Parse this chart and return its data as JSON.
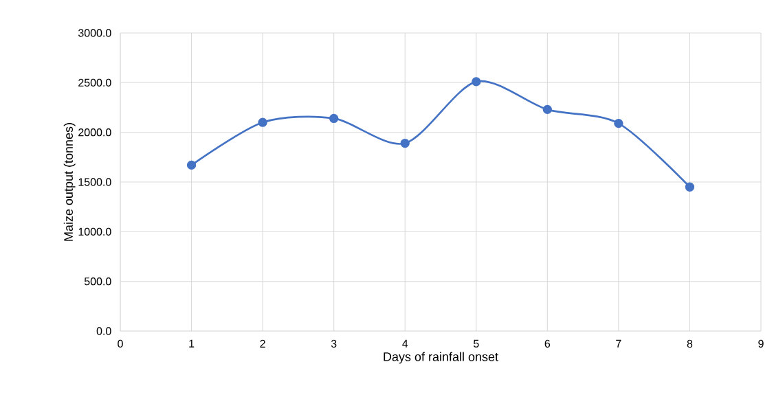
{
  "chart_data": {
    "type": "line",
    "xlabel": "Days of rainfall onset",
    "ylabel": "Maize output (tonnes)",
    "x": [
      1,
      2,
      3,
      4,
      5,
      6,
      7,
      8
    ],
    "series": [
      {
        "color": "#4472c4",
        "values": [
          1670,
          2100,
          2140,
          1890,
          2510,
          2230,
          2090,
          1450
        ]
      }
    ],
    "xlim": [
      0,
      9
    ],
    "xticks": [
      0,
      1,
      2,
      3,
      4,
      5,
      6,
      7,
      8,
      9
    ],
    "ylim": [
      0,
      3000
    ],
    "yticks": [
      {
        "value": 0,
        "label": "0.0"
      },
      {
        "value": 500,
        "label": "500.0"
      },
      {
        "value": 1000,
        "label": "1000.0"
      },
      {
        "value": 1500,
        "label": "1500.0"
      },
      {
        "value": 2000,
        "label": "2000.0"
      },
      {
        "value": 2500,
        "label": "2500.0"
      },
      {
        "value": 3000,
        "label": "3000.0"
      }
    ],
    "grid": true,
    "marker": "circle",
    "line_style": "solid"
  }
}
